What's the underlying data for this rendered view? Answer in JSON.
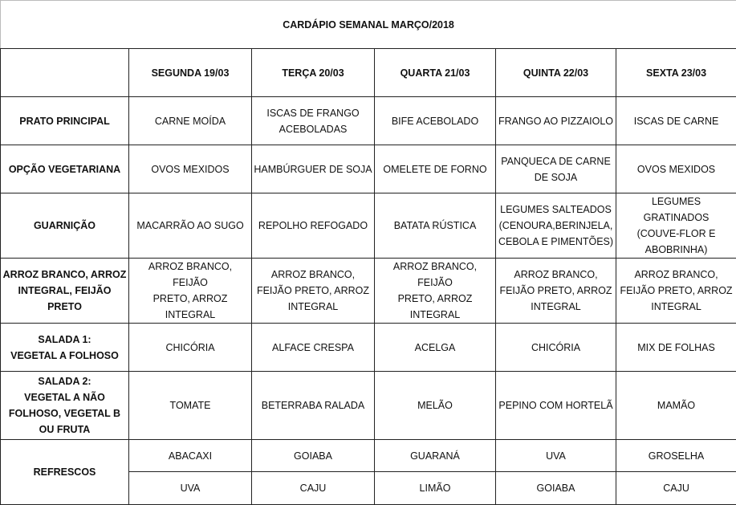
{
  "title": "CARDÁPIO SEMANAL MARÇO/2018",
  "days": [
    "SEGUNDA   19/03",
    "TERÇA 20/03",
    "QUARTA 21/03",
    "QUINTA 22/03",
    "SEXTA 23/03"
  ],
  "rows": [
    {
      "label": "PRATO PRINCIPAL",
      "cells": [
        "CARNE MOÍDA",
        "ISCAS DE FRANGO\nACEBOLADAS",
        "BIFE ACEBOLADO",
        "FRANGO AO PIZZAIOLO",
        "ISCAS DE CARNE"
      ]
    },
    {
      "label": "OPÇÃO VEGETARIANA",
      "cells": [
        "OVOS MEXIDOS",
        "HAMBÚRGUER DE SOJA",
        "OMELETE DE FORNO",
        "PANQUECA DE CARNE\nDE SOJA",
        "OVOS MEXIDOS"
      ]
    },
    {
      "label": "GUARNIÇÃO",
      "cells": [
        "MACARRÃO AO SUGO",
        "REPOLHO REFOGADO",
        "BATATA RÚSTICA",
        "LEGUMES SALTEADOS\n(CENOURA,BERINJELA,\nCEBOLA E PIMENTÕES)",
        "LEGUMES GRATINADOS\n(COUVE-FLOR E\nABOBRINHA)"
      ]
    },
    {
      "label": "ARROZ BRANCO, ARROZ\nINTEGRAL, FEIJÃO PRETO",
      "cells": [
        "ARROZ BRANCO, FEIJÃO\nPRETO, ARROZ\nINTEGRAL",
        "ARROZ BRANCO,\nFEIJÃO PRETO, ARROZ\nINTEGRAL",
        "ARROZ BRANCO, FEIJÃO\nPRETO, ARROZ\nINTEGRAL",
        "ARROZ BRANCO,\nFEIJÃO PRETO, ARROZ\nINTEGRAL",
        "ARROZ BRANCO,\nFEIJÃO PRETO, ARROZ\nINTEGRAL"
      ]
    },
    {
      "label": "SALADA 1:\nVEGETAL A FOLHOSO",
      "cells": [
        "CHICÓRIA",
        "ALFACE CRESPA",
        "ACELGA",
        "CHICÓRIA",
        "MIX DE FOLHAS"
      ]
    },
    {
      "label": "SALADA 2:\nVEGETAL A NÃO\nFOLHOSO, VEGETAL B\nOU FRUTA",
      "cells": [
        "TOMATE",
        "BETERRABA RALADA",
        "MELÃO",
        "PEPINO COM HORTELÃ",
        "MAMÃO"
      ]
    }
  ],
  "refrescos": {
    "label": "REFRESCOS",
    "row1": [
      "ABACAXI",
      "GOIABA",
      "GUARANÁ",
      "UVA",
      "GROSELHA"
    ],
    "row2": [
      "UVA",
      "CAJU",
      "LIMÃO",
      "GOIABA",
      "CAJU"
    ]
  }
}
